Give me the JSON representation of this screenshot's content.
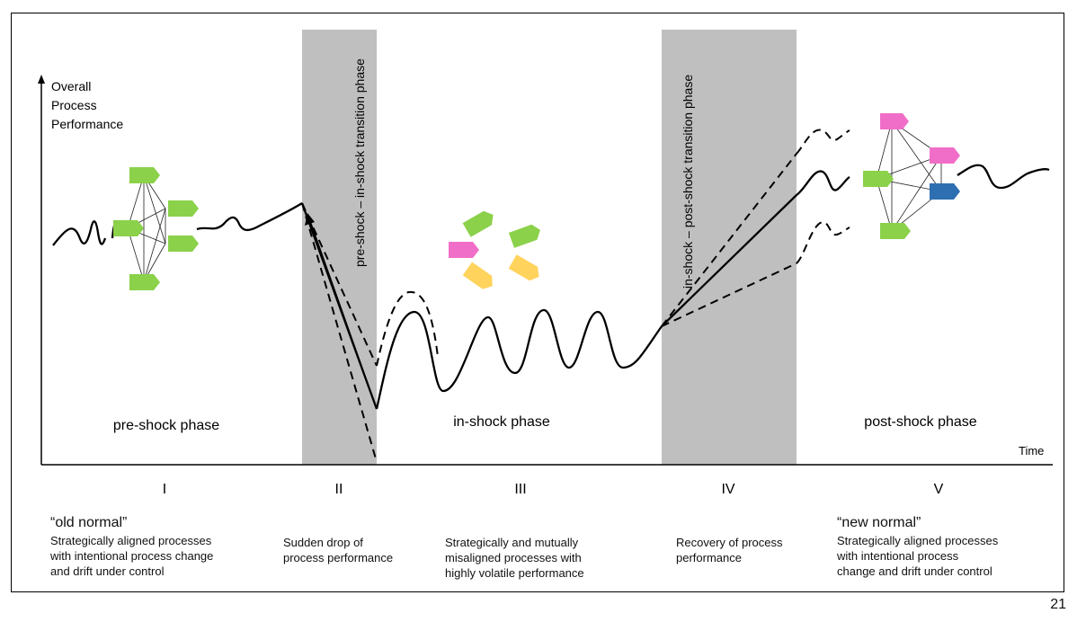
{
  "axis": {
    "y_label_lines": [
      "Overall",
      "Process",
      "Performance"
    ],
    "x_label": "Time"
  },
  "phases": [
    {
      "numeral": "I",
      "name": "pre-shock phase"
    },
    {
      "numeral": "II",
      "name": "pre-shock – in-shock transition phase"
    },
    {
      "numeral": "III",
      "name": "in-shock phase"
    },
    {
      "numeral": "IV",
      "name": "in-shock – post-shock transition phase"
    },
    {
      "numeral": "V",
      "name": "post-shock phase"
    }
  ],
  "descriptions": [
    {
      "head": "“old normal”",
      "lines": [
        "Strategically aligned processes",
        "with intentional process change",
        "and drift under control"
      ]
    },
    {
      "head": "",
      "lines": [
        "Sudden drop of",
        "process performance"
      ]
    },
    {
      "head": "",
      "lines": [
        "Strategically and mutually",
        "misaligned processes with",
        "highly volatile performance"
      ]
    },
    {
      "head": "",
      "lines": [
        "Recovery of process",
        "performance"
      ]
    },
    {
      "head": "“new normal”",
      "lines": [
        "Strategically aligned processes",
        "with intentional process",
        "change and drift under control"
      ]
    }
  ],
  "colors": {
    "band": "#bfbfbf",
    "green": "#8bd14a",
    "pink": "#f16ec8",
    "yellow": "#ffd35c",
    "blue": "#2e6fb2",
    "curve": "#000000"
  },
  "slide_number": "21"
}
